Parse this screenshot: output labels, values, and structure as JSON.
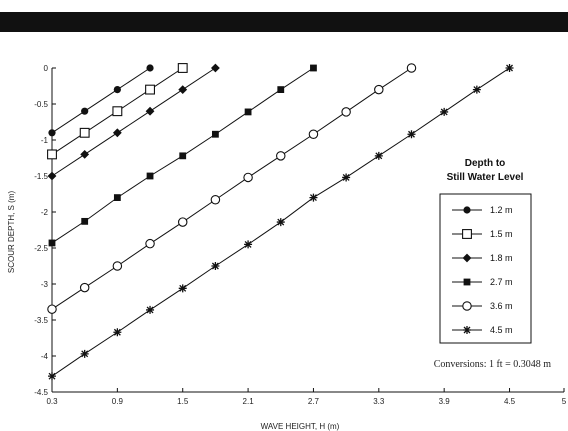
{
  "chart_data": {
    "type": "line",
    "xlabel": "WAVE HEIGHT, H (m)",
    "ylabel": "SCOUR DEPTH, S (m)",
    "xlim": [
      0.3,
      5
    ],
    "ylim": [
      -4.5,
      0
    ],
    "x_ticks": [
      "0.3",
      "0.9",
      "1.5",
      "2.1",
      "2.7",
      "3.3",
      "3.9",
      "4.5",
      "5"
    ],
    "x_tick_values": [
      0.3,
      0.9,
      1.5,
      2.1,
      2.7,
      3.3,
      3.9,
      4.5,
      5
    ],
    "y_ticks": [
      "0",
      "-0.5",
      "-1",
      "-1.5",
      "-2",
      "-2.5",
      "-3",
      "-3.5",
      "-4",
      "-4.5"
    ],
    "y_tick_values": [
      0,
      -0.5,
      -1,
      -1.5,
      -2,
      -2.5,
      -3,
      -3.5,
      -4,
      -4.5
    ],
    "grid": false,
    "legend": {
      "title": "Depth to Still Water Level",
      "title_lines": [
        "Depth to",
        "Still Water Level"
      ],
      "placement": "right"
    },
    "annotation": "Conversions: 1 ft = 0.3048 m",
    "series": [
      {
        "name": "1.2 m",
        "marker": "filled-circle",
        "x": [
          0.3,
          0.6,
          0.9,
          1.2
        ],
        "y": [
          -0.9,
          -0.6,
          -0.3,
          0
        ]
      },
      {
        "name": "1.5 m",
        "marker": "open-square",
        "x": [
          0.3,
          0.6,
          0.9,
          1.2,
          1.5
        ],
        "y": [
          -1.2,
          -0.9,
          -0.6,
          -0.3,
          0
        ]
      },
      {
        "name": "1.8 m",
        "marker": "filled-diamond",
        "x": [
          0.3,
          0.6,
          0.9,
          1.2,
          1.5,
          1.8
        ],
        "y": [
          -1.5,
          -1.2,
          -0.9,
          -0.6,
          -0.3,
          0
        ]
      },
      {
        "name": "2.7 m",
        "marker": "filled-square",
        "x": [
          0.3,
          0.6,
          0.9,
          1.2,
          1.5,
          1.8,
          2.1,
          2.4,
          2.7
        ],
        "y": [
          -2.43,
          -2.13,
          -1.8,
          -1.5,
          -1.22,
          -0.92,
          -0.61,
          -0.3,
          0
        ]
      },
      {
        "name": "3.6 m",
        "marker": "open-circle",
        "x": [
          0.3,
          0.6,
          0.9,
          1.2,
          1.5,
          1.8,
          2.1,
          2.4,
          2.7,
          3.0,
          3.3,
          3.6
        ],
        "y": [
          -3.35,
          -3.05,
          -2.75,
          -2.44,
          -2.14,
          -1.83,
          -1.52,
          -1.22,
          -0.92,
          -0.61,
          -0.3,
          0
        ]
      },
      {
        "name": "4.5 m",
        "marker": "asterisk",
        "x": [
          0.3,
          0.6,
          0.9,
          1.2,
          1.5,
          1.8,
          2.1,
          2.4,
          2.7,
          3.0,
          3.3,
          3.6,
          3.9,
          4.2,
          4.5
        ],
        "y": [
          -4.28,
          -3.97,
          -3.67,
          -3.36,
          -3.06,
          -2.75,
          -2.45,
          -2.14,
          -1.8,
          -1.52,
          -1.22,
          -0.92,
          -0.61,
          -0.3,
          0
        ]
      }
    ]
  }
}
